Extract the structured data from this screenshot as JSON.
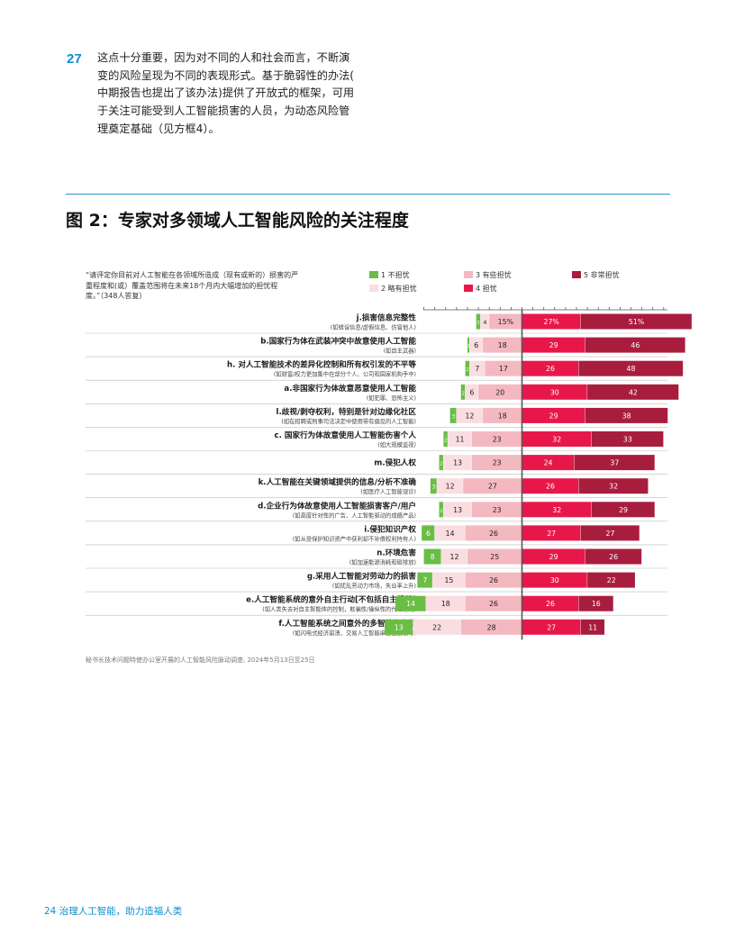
{
  "paragraph": {
    "number": "27",
    "lines": [
      "这点十分重要，因为对不同的人和社会而言，不断演",
      "变的风险呈现为不同的表现形式。基于脆弱性的办法(",
      "中期报告也提出了该办法)提供了开放式的框架，可用",
      "于关注可能受到人工智能损害的人员，为动态风险管",
      "理奠定基础（见方框4）。"
    ]
  },
  "figure_title": "图 2：专家对多领域人工智能风险的关注程度",
  "question_lines": [
    "“请评定你目前对人工智能在各领域所造成（现有或新的）损害的严",
    "重程度和(或）覆盖范围将在未来18个月内大幅增加的担忧程",
    "度。”（348人答复）"
  ],
  "source": "秘书长技术问题特使办公室开展的人工智能风险脉动调查, 2024年5月13日至25日",
  "footer": "24  治理人工智能，助力造福人类",
  "colors": {
    "accent_blue": "#0d8fd0",
    "not_worried": "#6abd45",
    "slightly": "#f9dde0",
    "somewhat": "#f4b8c1",
    "worried": "#e8174a",
    "very": "#a81d3e",
    "center_line": "#555555"
  },
  "chart_data": {
    "type": "bar",
    "subtype": "diverging-stacked-horizontal",
    "unit": "%",
    "legend": [
      {
        "key": "c1",
        "label": "1 不担忧",
        "color": "#6abd45"
      },
      {
        "key": "c2",
        "label": "2 略有担忧",
        "color": "#f9dde0"
      },
      {
        "key": "c3",
        "label": "3 有些担忧",
        "color": "#f4b8c1"
      },
      {
        "key": "c4",
        "label": "4 担忧",
        "color": "#e8174a"
      },
      {
        "key": "c5",
        "label": "5 非常担忧",
        "color": "#a81d3e"
      }
    ],
    "categories": [
      {
        "label": "j.损害信息完整性",
        "sub": "(如错误信息/虚假信息、仿冒他人)",
        "values": [
          2,
          4,
          15,
          27,
          51
        ],
        "labels": [
          "2",
          "4",
          "15%",
          "27%",
          "51%"
        ]
      },
      {
        "label": "b.国家行为体在武装冲突中故意使用人工智能",
        "sub": "(如自主武器)",
        "values": [
          1,
          6,
          18,
          29,
          46
        ],
        "labels": [
          "1",
          "6",
          "18",
          "29",
          "46"
        ]
      },
      {
        "label": "h. 对人工智能技术的差异化控制和所有权引发的不平等",
        "sub": "(如财富/权力更加集中在部分个人、公司和国家机构手中)",
        "values": [
          2,
          7,
          17,
          26,
          48
        ],
        "labels": [
          "2",
          "7",
          "17",
          "26",
          "48"
        ]
      },
      {
        "label": "a.非国家行为体故意恶意使用人工智能",
        "sub": "(如犯罪、恐怖主义)",
        "values": [
          2,
          6,
          20,
          30,
          42
        ],
        "labels": [
          "2",
          "6",
          "20",
          "30",
          "42"
        ]
      },
      {
        "label": "l.歧视/剥夺权利，特别是针对边缘化社区",
        "sub": "(如在招聘或刑事司法决定中使用带有偏见的人工智能)",
        "values": [
          3,
          12,
          18,
          29,
          38
        ],
        "labels": [
          "3",
          "12",
          "18",
          "29",
          "38"
        ]
      },
      {
        "label": "c. 国家行为体故意使用人工智能伤害个人",
        "sub": "(如大规模监视)",
        "values": [
          2,
          11,
          23,
          32,
          33
        ],
        "labels": [
          "2",
          "11",
          "23",
          "32",
          "33"
        ]
      },
      {
        "label": "m.侵犯人权",
        "sub": "",
        "values": [
          2,
          13,
          23,
          24,
          37
        ],
        "labels": [
          "2",
          "13",
          "23",
          "24",
          "37"
        ]
      },
      {
        "label": "k.人工智能在关键领域提供的信息/分析不准确",
        "sub": "(如医疗人工智能误诊)",
        "values": [
          3,
          12,
          27,
          26,
          32
        ],
        "labels": [
          "3",
          "12",
          "27",
          "26",
          "32"
        ]
      },
      {
        "label": "d.企业行为体故意使用人工智能损害客户/用户",
        "sub": "(如高度针对性的广告、人工智能驱动的成瘾产品)",
        "values": [
          2,
          13,
          23,
          32,
          29
        ],
        "labels": [
          "2",
          "13",
          "23",
          "32",
          "29"
        ]
      },
      {
        "label": "i.侵犯知识产权",
        "sub": "(如从受保护知识资产中获利却不补偿权利持有人)",
        "values": [
          6,
          14,
          26,
          27,
          27
        ],
        "labels": [
          "6",
          "14",
          "26",
          "27",
          "27"
        ]
      },
      {
        "label": "n.环境危害",
        "sub": "(如加速能源消耗和碳排放)",
        "values": [
          8,
          12,
          25,
          29,
          26
        ],
        "labels": [
          "8",
          "12",
          "25",
          "29",
          "26"
        ]
      },
      {
        "label": "g.采用人工智能对劳动力的损害",
        "sub": "(如扰乱劳动力市场，失业率上升)",
        "values": [
          7,
          15,
          26,
          30,
          22
        ],
        "labels": [
          "7",
          "15",
          "26",
          "30",
          "22"
        ]
      },
      {
        "label": "e.人工智能系统的意外自主行动[不包括自主武器]",
        "sub": "(如人类失去对自主智能体的控制，欺骗性/操纵性的代理行为)",
        "values": [
          14,
          18,
          26,
          26,
          16
        ],
        "labels": [
          "14",
          "18",
          "26",
          "26",
          "16"
        ]
      },
      {
        "label": "f.人工智能系统之间意外的多智能体交互",
        "sub": "(如闪电式经济崩溃，交易人工智能串通互发信号)",
        "values": [
          13,
          22,
          28,
          27,
          11
        ],
        "labels": [
          "13",
          "22",
          "28",
          "27",
          "11"
        ]
      }
    ]
  }
}
